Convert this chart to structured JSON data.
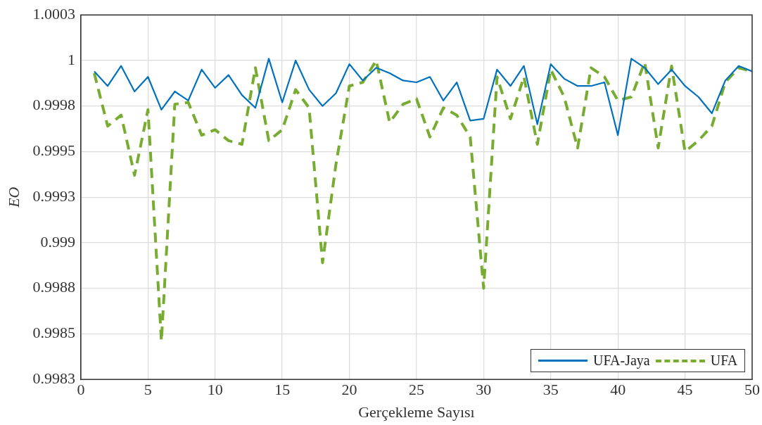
{
  "chart_data": {
    "type": "line",
    "xlabel": "Gerçekleme Sayısı",
    "ylabel": "EO",
    "x": [
      1,
      2,
      3,
      4,
      5,
      6,
      7,
      8,
      9,
      10,
      11,
      12,
      13,
      14,
      15,
      16,
      17,
      18,
      19,
      20,
      21,
      22,
      23,
      24,
      25,
      26,
      27,
      28,
      29,
      30,
      31,
      32,
      33,
      34,
      35,
      36,
      37,
      38,
      39,
      40,
      41,
      42,
      43,
      44,
      45,
      46,
      47,
      48,
      49,
      50
    ],
    "series": [
      {
        "name": "UFA-Jaya",
        "color": "#0072bd",
        "line_style": "solid",
        "values": [
          0.99994,
          0.99986,
          0.99997,
          0.99983,
          0.99991,
          0.99973,
          0.99983,
          0.99978,
          0.99995,
          0.99985,
          0.99992,
          0.99981,
          0.99974,
          1.00001,
          0.99977,
          1.0,
          0.99984,
          0.99975,
          0.99982,
          0.99998,
          0.99989,
          0.99996,
          0.99993,
          0.99989,
          0.99988,
          0.99991,
          0.99978,
          0.99988,
          0.99967,
          0.99968,
          0.99995,
          0.99986,
          0.99997,
          0.99965,
          0.99998,
          0.9999,
          0.99986,
          0.99986,
          0.99988,
          0.99959,
          1.00001,
          0.99996,
          0.99987,
          0.99995,
          0.99986,
          0.9998,
          0.99971,
          0.99989,
          0.99997,
          0.99994
        ]
      },
      {
        "name": "UFA",
        "color": "#77ac30",
        "line_style": "dashed",
        "values": [
          0.99993,
          0.99964,
          0.9997,
          0.99937,
          0.99973,
          0.99846,
          0.99976,
          0.99977,
          0.99959,
          0.99962,
          0.99956,
          0.99954,
          0.99996,
          0.99956,
          0.99962,
          0.99984,
          0.99974,
          0.99889,
          0.99943,
          0.99986,
          0.99988,
          1.0,
          0.99966,
          0.99976,
          0.99979,
          0.99958,
          0.99974,
          0.9997,
          0.99958,
          0.99875,
          0.99991,
          0.99968,
          0.99991,
          0.99954,
          0.99995,
          0.9998,
          0.99952,
          0.99996,
          0.99991,
          0.99978,
          0.9998,
          0.99999,
          0.99952,
          0.99997,
          0.9995,
          0.99956,
          0.99964,
          0.99988,
          0.99996,
          0.99994
        ]
      }
    ],
    "xlim": [
      0,
      50
    ],
    "xticks": [
      0,
      5,
      10,
      15,
      20,
      25,
      30,
      35,
      40,
      45,
      50
    ],
    "ylim": [
      0.99825,
      1.00025
    ],
    "yticks": [
      {
        "value": 0.99825,
        "label": "0.9983"
      },
      {
        "value": 0.9985,
        "label": "0.9985"
      },
      {
        "value": 0.99875,
        "label": "0.9988"
      },
      {
        "value": 0.999,
        "label": "0.999"
      },
      {
        "value": 0.99925,
        "label": "0.9993"
      },
      {
        "value": 0.9995,
        "label": "0.9995"
      },
      {
        "value": 0.99975,
        "label": "0.9998"
      },
      {
        "value": 1.0,
        "label": "1"
      },
      {
        "value": 1.00025,
        "label": "1.0003"
      }
    ],
    "grid": true,
    "legend": "bottom right",
    "marker": "none"
  }
}
